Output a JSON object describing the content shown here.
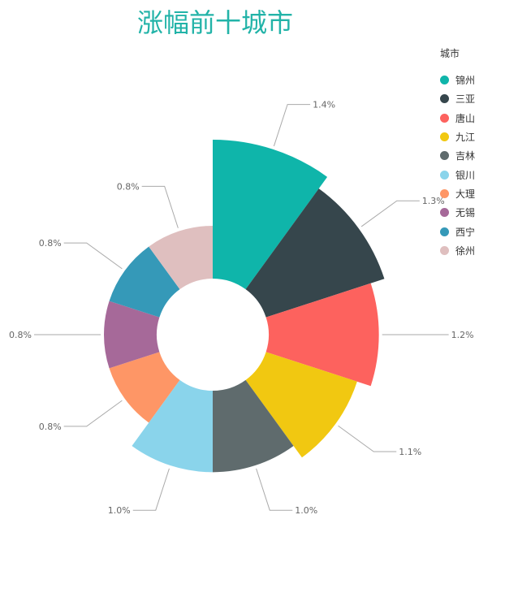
{
  "title": "涨幅前十城市",
  "chart_data": {
    "type": "pie",
    "variant": "rose",
    "title": "涨幅前十城市",
    "legend_title": "城市",
    "legend_position": "right",
    "series": [
      {
        "name": "锦州",
        "value": 1.4,
        "label": "1.4%",
        "color": "#0fb5aa"
      },
      {
        "name": "三亚",
        "value": 1.3,
        "label": "1.3%",
        "color": "#36464c"
      },
      {
        "name": "唐山",
        "value": 1.2,
        "label": "1.2%",
        "color": "#fd625e"
      },
      {
        "name": "九江",
        "value": 1.1,
        "label": "1.1%",
        "color": "#f1c811"
      },
      {
        "name": "吉林",
        "value": 1.0,
        "label": "1.0%",
        "color": "#5f6b6d"
      },
      {
        "name": "银川",
        "value": 1.0,
        "label": "1.0%",
        "color": "#8ad4eb"
      },
      {
        "name": "大理",
        "value": 0.8,
        "label": "0.8%",
        "color": "#fe9666"
      },
      {
        "name": "无锡",
        "value": 0.8,
        "label": "0.8%",
        "color": "#a66999"
      },
      {
        "name": "西宁",
        "value": 0.8,
        "label": "0.8%",
        "color": "#3599b8"
      },
      {
        "name": "徐州",
        "value": 0.8,
        "label": "0.8%",
        "color": "#dfbfbf"
      }
    ]
  }
}
